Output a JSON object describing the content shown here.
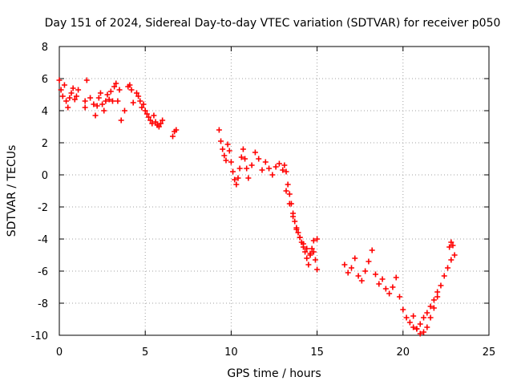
{
  "chart_data": {
    "type": "scatter",
    "title": "Day 151 of 2024, Sidereal Day-to-day VTEC variation (SDTVAR) for receiver p050",
    "xlabel": "GPS time / hours",
    "ylabel": "SDTVAR / TECUs",
    "xlim": [
      0,
      25
    ],
    "ylim": [
      -10,
      8
    ],
    "xticks": [
      0,
      5,
      10,
      15,
      20,
      25
    ],
    "yticks": [
      -10,
      -8,
      -6,
      -4,
      -2,
      0,
      2,
      4,
      6,
      8
    ],
    "grid": true,
    "marker": "+",
    "color": "#ff0000",
    "series": [
      {
        "name": "SDTVAR",
        "x": [
          0.0,
          0.1,
          0.2,
          0.3,
          0.4,
          0.5,
          0.6,
          0.7,
          0.8,
          0.9,
          1.0,
          1.1,
          1.5,
          1.5,
          1.6,
          1.8,
          2.0,
          2.1,
          2.2,
          2.3,
          2.4,
          2.5,
          2.6,
          2.7,
          2.8,
          2.9,
          3.0,
          3.1,
          3.2,
          3.3,
          3.4,
          3.5,
          3.6,
          3.8,
          4.0,
          4.1,
          4.2,
          4.3,
          4.5,
          4.6,
          4.7,
          4.8,
          4.9,
          5.0,
          5.1,
          5.2,
          5.3,
          5.4,
          5.5,
          5.6,
          5.7,
          5.8,
          5.9,
          6.0,
          6.6,
          6.7,
          6.8,
          9.3,
          9.4,
          9.5,
          9.6,
          9.7,
          9.8,
          9.9,
          10.0,
          10.1,
          10.2,
          10.3,
          10.4,
          10.5,
          10.6,
          10.7,
          10.8,
          10.9,
          11.0,
          11.2,
          11.4,
          11.6,
          11.8,
          12.0,
          12.2,
          12.4,
          12.6,
          12.8,
          13.0,
          13.1,
          13.2,
          13.3,
          13.4,
          13.5,
          13.6,
          13.7,
          13.8,
          13.9,
          14.0,
          14.1,
          14.2,
          14.3,
          14.4,
          14.5,
          14.6,
          14.7,
          14.8,
          14.9,
          15.0,
          13.2,
          13.4,
          13.6,
          13.8,
          14.0,
          14.2,
          14.4,
          14.6,
          14.8,
          15.0,
          16.6,
          16.8,
          17.0,
          17.2,
          17.4,
          17.6,
          17.8,
          18.0,
          18.2,
          18.4,
          18.6,
          18.8,
          19.0,
          19.2,
          19.4,
          19.6,
          19.8,
          20.0,
          20.2,
          20.4,
          20.6,
          20.8,
          21.0,
          21.2,
          21.4,
          21.6,
          21.8,
          22.0,
          22.2,
          22.4,
          22.6,
          22.8,
          23.0,
          20.6,
          20.8,
          21.0,
          21.2,
          21.4,
          21.6,
          21.8,
          22.0,
          22.7,
          22.8,
          22.9
        ],
        "y": [
          5.9,
          5.3,
          4.9,
          5.6,
          4.6,
          4.2,
          4.8,
          5.1,
          5.4,
          4.7,
          4.9,
          5.3,
          4.6,
          4.2,
          5.9,
          4.8,
          4.4,
          3.7,
          4.3,
          4.8,
          5.1,
          4.4,
          4.0,
          4.6,
          5.0,
          4.7,
          5.2,
          4.6,
          5.5,
          5.7,
          4.6,
          5.3,
          3.4,
          4.0,
          5.5,
          5.6,
          5.3,
          4.5,
          5.1,
          4.9,
          4.6,
          4.2,
          4.4,
          4.0,
          3.8,
          3.6,
          3.4,
          3.2,
          3.7,
          3.3,
          3.1,
          3.0,
          3.2,
          3.4,
          2.4,
          2.7,
          2.8,
          2.8,
          2.1,
          1.6,
          1.2,
          0.9,
          1.9,
          1.5,
          0.8,
          0.2,
          -0.3,
          -0.6,
          -0.2,
          0.4,
          1.1,
          1.6,
          1.0,
          0.4,
          -0.2,
          0.6,
          1.4,
          1.0,
          0.3,
          0.8,
          0.4,
          0.0,
          0.5,
          0.7,
          0.3,
          0.6,
          0.2,
          -0.6,
          -1.2,
          -1.8,
          -2.4,
          -2.9,
          -3.4,
          -3.6,
          -3.9,
          -4.2,
          -4.5,
          -4.8,
          -5.2,
          -5.6,
          -5.0,
          -4.6,
          -4.8,
          -5.3,
          -5.9,
          -1.0,
          -1.8,
          -2.6,
          -3.3,
          -3.9,
          -4.3,
          -4.6,
          -4.9,
          -4.1,
          -4.0,
          -5.6,
          -6.1,
          -5.8,
          -5.2,
          -6.3,
          -6.6,
          -6.0,
          -5.4,
          -4.7,
          -6.2,
          -6.8,
          -6.5,
          -7.1,
          -7.4,
          -7.0,
          -6.4,
          -7.6,
          -8.4,
          -8.9,
          -9.2,
          -9.5,
          -9.6,
          -9.3,
          -8.9,
          -8.6,
          -8.2,
          -7.8,
          -7.3,
          -6.9,
          -6.3,
          -5.8,
          -5.3,
          -5.0,
          -8.8,
          -9.6,
          -9.9,
          -9.8,
          -9.5,
          -8.9,
          -8.3,
          -7.6,
          -4.5,
          -4.2,
          -4.4
        ]
      }
    ]
  }
}
